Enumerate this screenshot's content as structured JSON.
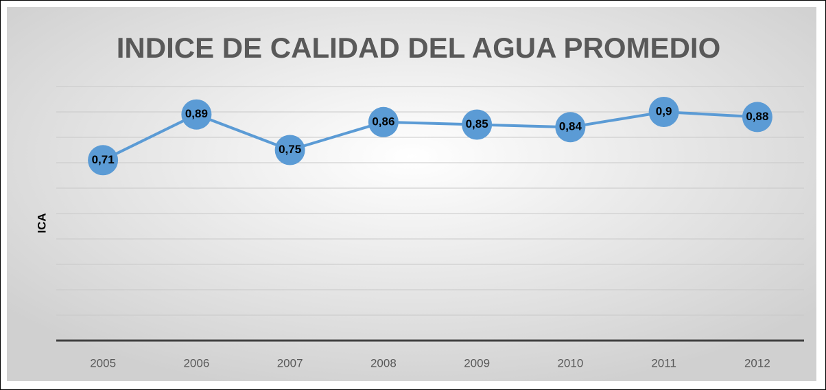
{
  "chart_data": {
    "type": "line",
    "title": "INDICE DE CALIDAD DEL AGUA PROMEDIO",
    "y_label": "ICA",
    "categories": [
      "2005",
      "2006",
      "2007",
      "2008",
      "2009",
      "2010",
      "2011",
      "2012"
    ],
    "series": [
      {
        "name": "ICA",
        "color": "#5b9bd5",
        "values": [
          0.71,
          0.89,
          0.75,
          0.86,
          0.85,
          0.84,
          0.9,
          0.88
        ],
        "value_labels": [
          "0,71",
          "0,89",
          "0,75",
          "0,86",
          "0,85",
          "0,84",
          "0,9",
          "0,88"
        ]
      }
    ],
    "ylim": [
      0,
      1
    ],
    "yticks": [
      0,
      0.1,
      0.2,
      0.3,
      0.4,
      0.5,
      0.6,
      0.7,
      0.8,
      0.9,
      1
    ],
    "grid": true
  }
}
